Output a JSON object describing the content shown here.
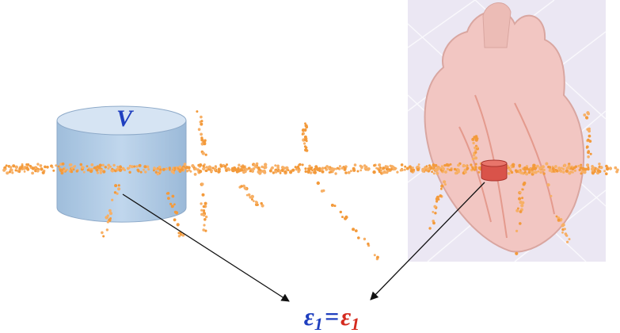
{
  "cylinder_label": "V",
  "equation": {
    "left": {
      "symbol": "ε",
      "subscript": "1"
    },
    "operator": "=",
    "right": {
      "symbol": "ε",
      "subscript": "1"
    }
  }
}
